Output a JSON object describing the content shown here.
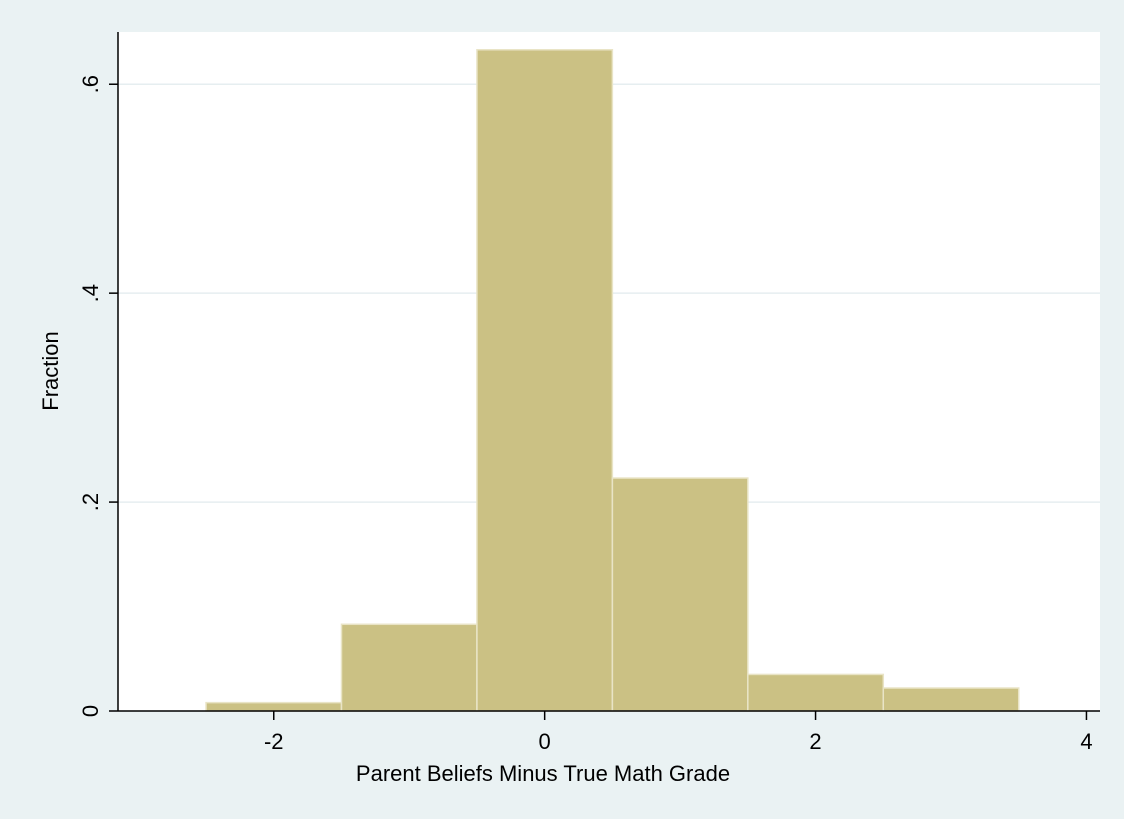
{
  "chart_data": {
    "type": "histogram",
    "xlabel": "Parent Beliefs Minus True Math Grade",
    "ylabel": "Fraction",
    "bins": [
      -2.5,
      -1.5,
      -0.5,
      0.5,
      1.5,
      2.5,
      3.5
    ],
    "values": [
      0.008,
      0.083,
      0.633,
      0.223,
      0.035,
      0.022
    ],
    "color": "#cbc184",
    "xlim": [
      -3.15,
      4.1
    ],
    "xticks": [
      -2,
      0,
      2,
      4
    ],
    "ylim": [
      0,
      0.65
    ],
    "yticks": [
      0,
      {
        "value": 0.2,
        "label": ".2"
      },
      {
        "value": 0.4,
        "label": ".4"
      },
      {
        "value": 0.6,
        "label": ".6"
      }
    ],
    "grid": true
  }
}
